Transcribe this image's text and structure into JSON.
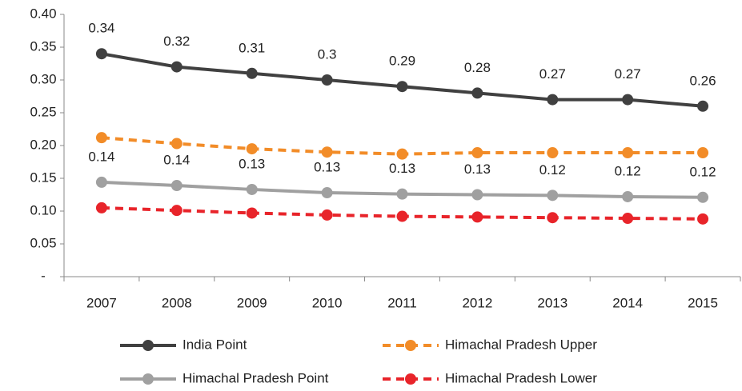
{
  "chart_data": {
    "type": "line",
    "categories": [
      "2007",
      "2008",
      "2009",
      "2010",
      "2011",
      "2012",
      "2013",
      "2014",
      "2015"
    ],
    "ylim": [
      0,
      0.4
    ],
    "yticks": [
      {
        "value": 0,
        "label": "-"
      },
      0.05,
      {
        "value": 0.1,
        "label": "0.10"
      },
      0.15,
      {
        "value": 0.2,
        "label": "0.20"
      },
      0.25,
      {
        "value": 0.3,
        "label": "0.30"
      },
      0.35,
      {
        "value": 0.4,
        "label": "0.40"
      }
    ],
    "grid": false,
    "legend": "bottom",
    "series": [
      {
        "name": "India Point",
        "color": "#404040",
        "dashed": false,
        "values": [
          0.34,
          0.32,
          0.31,
          0.3,
          0.29,
          0.28,
          0.27,
          0.27,
          0.26
        ],
        "value_labels": [
          "0.34",
          "0.32",
          "0.31",
          "0.3",
          "0.29",
          "0.28",
          "0.27",
          "0.27",
          "0.26"
        ]
      },
      {
        "name": "Himachal Pradesh Upper",
        "color": "#f28c28",
        "dashed": true,
        "values": [
          0.212,
          0.203,
          0.195,
          0.19,
          0.187,
          0.189,
          0.189,
          0.189,
          0.189
        ]
      },
      {
        "name": "Himachal Pradesh Point",
        "color": "#a0a0a0",
        "dashed": false,
        "values": [
          0.144,
          0.139,
          0.133,
          0.128,
          0.126,
          0.125,
          0.124,
          0.122,
          0.121
        ],
        "value_labels": [
          "0.14",
          "0.14",
          "0.13",
          "0.13",
          "0.13",
          "0.13",
          "0.12",
          "0.12",
          "0.12"
        ]
      },
      {
        "name": "Himachal Pradesh Lower",
        "color": "#e8242a",
        "dashed": true,
        "values": [
          0.105,
          0.101,
          0.097,
          0.094,
          0.092,
          0.091,
          0.09,
          0.089,
          0.088
        ]
      }
    ]
  }
}
